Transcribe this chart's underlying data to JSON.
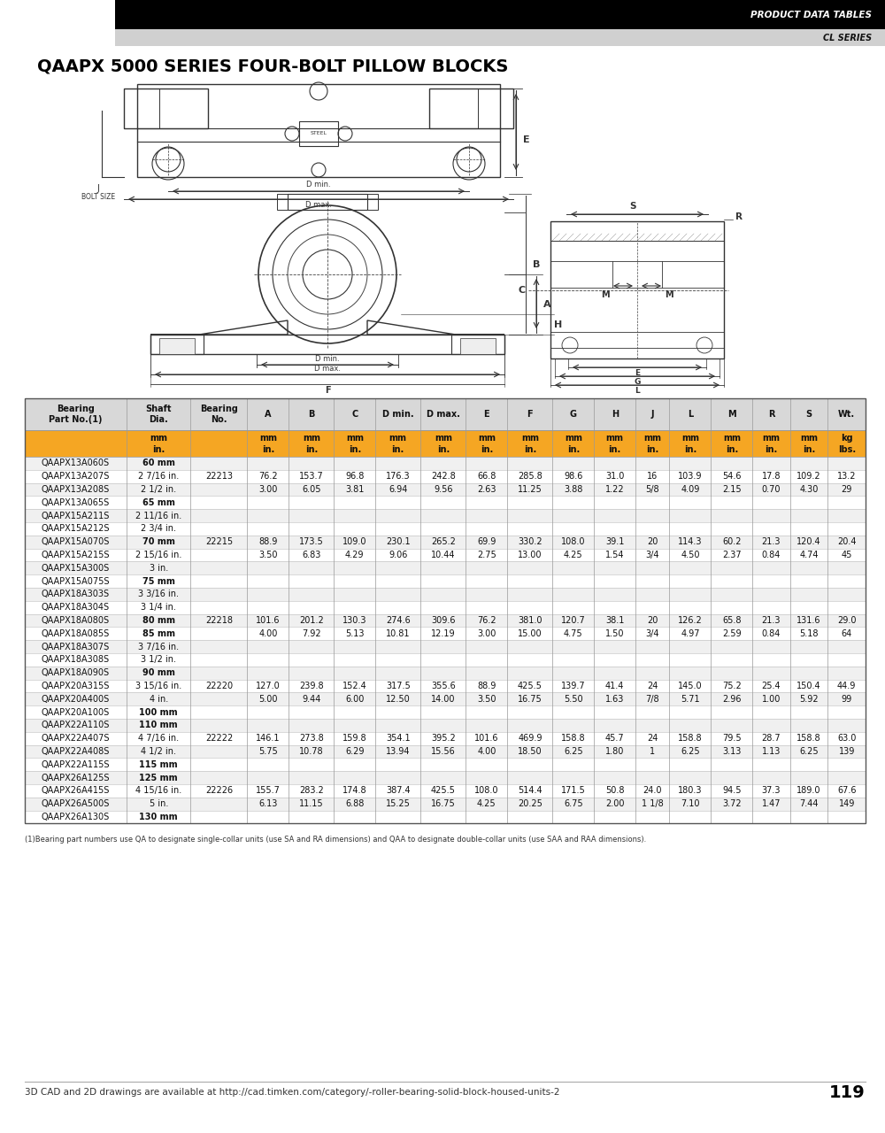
{
  "page_title": "QAAPX 5000 SERIES FOUR-BOLT PILLOW BLOCKS",
  "header_bar_text": "PRODUCT DATA TABLES",
  "subheader_text": "CL SERIES",
  "page_number": "119",
  "footer_text": "3D CAD and 2D drawings are available at http://cad.timken.com/category/-roller-bearing-solid-block-housed-units-2",
  "footnote": "(1)Bearing part numbers use QA to designate single-collar units (use SA and RA dimensions) and QAA to designate double-collar units (use SAA and RAA dimensions).",
  "col_headers": [
    "Bearing\nPart No.(1)",
    "Shaft\nDia.",
    "Bearing\nNo.",
    "A",
    "B",
    "C",
    "D min.",
    "D max.",
    "E",
    "F",
    "G",
    "H",
    "J",
    "L",
    "M",
    "R",
    "S",
    "Wt."
  ],
  "col_units_mm": [
    "",
    "mm",
    "",
    "mm",
    "mm",
    "mm",
    "mm",
    "mm",
    "mm",
    "mm",
    "mm",
    "mm",
    "mm",
    "mm",
    "mm",
    "mm",
    "mm",
    "kg"
  ],
  "col_units_in": [
    "",
    "in.",
    "",
    "in.",
    "in.",
    "in.",
    "in.",
    "in.",
    "in.",
    "in.",
    "in.",
    "in.",
    "in.",
    "in.",
    "in.",
    "in.",
    "in.",
    "lbs."
  ],
  "table_data": [
    [
      "QAAPX13A060S",
      "60 mm",
      "",
      "",
      "",
      "",
      "",
      "",
      "",
      "",
      "",
      "",
      "",
      "",
      "",
      "",
      "",
      ""
    ],
    [
      "QAAPX13A207S",
      "2 7/16 in.",
      "22213",
      "76.2",
      "153.7",
      "96.8",
      "176.3",
      "242.8",
      "66.8",
      "285.8",
      "98.6",
      "31.0",
      "16",
      "103.9",
      "54.6",
      "17.8",
      "109.2",
      "13.2"
    ],
    [
      "QAAPX13A208S",
      "2 1/2 in.",
      "",
      "3.00",
      "6.05",
      "3.81",
      "6.94",
      "9.56",
      "2.63",
      "11.25",
      "3.88",
      "1.22",
      "5/8",
      "4.09",
      "2.15",
      "0.70",
      "4.30",
      "29"
    ],
    [
      "QAAPX13A065S",
      "65 mm",
      "",
      "",
      "",
      "",
      "",
      "",
      "",
      "",
      "",
      "",
      "",
      "",
      "",
      "",
      "",
      ""
    ],
    [
      "QAAPX15A211S",
      "2 11/16 in.",
      "",
      "",
      "",
      "",
      "",
      "",
      "",
      "",
      "",
      "",
      "",
      "",
      "",
      "",
      "",
      ""
    ],
    [
      "QAAPX15A212S",
      "2 3/4 in.",
      "",
      "",
      "",
      "",
      "",
      "",
      "",
      "",
      "",
      "",
      "",
      "",
      "",
      "",
      "",
      ""
    ],
    [
      "QAAPX15A070S",
      "70 mm",
      "22215",
      "88.9",
      "173.5",
      "109.0",
      "230.1",
      "265.2",
      "69.9",
      "330.2",
      "108.0",
      "39.1",
      "20",
      "114.3",
      "60.2",
      "21.3",
      "120.4",
      "20.4"
    ],
    [
      "QAAPX15A215S",
      "2 15/16 in.",
      "",
      "3.50",
      "6.83",
      "4.29",
      "9.06",
      "10.44",
      "2.75",
      "13.00",
      "4.25",
      "1.54",
      "3/4",
      "4.50",
      "2.37",
      "0.84",
      "4.74",
      "45"
    ],
    [
      "QAAPX15A300S",
      "3 in.",
      "",
      "",
      "",
      "",
      "",
      "",
      "",
      "",
      "",
      "",
      "",
      "",
      "",
      "",
      "",
      ""
    ],
    [
      "QAAPX15A075S",
      "75 mm",
      "",
      "",
      "",
      "",
      "",
      "",
      "",
      "",
      "",
      "",
      "",
      "",
      "",
      "",
      "",
      ""
    ],
    [
      "QAAPX18A303S",
      "3 3/16 in.",
      "",
      "",
      "",
      "",
      "",
      "",
      "",
      "",
      "",
      "",
      "",
      "",
      "",
      "",
      "",
      ""
    ],
    [
      "QAAPX18A304S",
      "3 1/4 in.",
      "",
      "",
      "",
      "",
      "",
      "",
      "",
      "",
      "",
      "",
      "",
      "",
      "",
      "",
      "",
      ""
    ],
    [
      "QAAPX18A080S",
      "80 mm",
      "22218",
      "101.6",
      "201.2",
      "130.3",
      "274.6",
      "309.6",
      "76.2",
      "381.0",
      "120.7",
      "38.1",
      "20",
      "126.2",
      "65.8",
      "21.3",
      "131.6",
      "29.0"
    ],
    [
      "QAAPX18A085S",
      "85 mm",
      "",
      "4.00",
      "7.92",
      "5.13",
      "10.81",
      "12.19",
      "3.00",
      "15.00",
      "4.75",
      "1.50",
      "3/4",
      "4.97",
      "2.59",
      "0.84",
      "5.18",
      "64"
    ],
    [
      "QAAPX18A307S",
      "3 7/16 in.",
      "",
      "",
      "",
      "",
      "",
      "",
      "",
      "",
      "",
      "",
      "",
      "",
      "",
      "",
      "",
      ""
    ],
    [
      "QAAPX18A308S",
      "3 1/2 in.",
      "",
      "",
      "",
      "",
      "",
      "",
      "",
      "",
      "",
      "",
      "",
      "",
      "",
      "",
      "",
      ""
    ],
    [
      "QAAPX18A090S",
      "90 mm",
      "",
      "",
      "",
      "",
      "",
      "",
      "",
      "",
      "",
      "",
      "",
      "",
      "",
      "",
      "",
      ""
    ],
    [
      "QAAPX20A315S",
      "3 15/16 in.",
      "22220",
      "127.0",
      "239.8",
      "152.4",
      "317.5",
      "355.6",
      "88.9",
      "425.5",
      "139.7",
      "41.4",
      "24",
      "145.0",
      "75.2",
      "25.4",
      "150.4",
      "44.9"
    ],
    [
      "QAAPX20A400S",
      "4 in.",
      "",
      "5.00",
      "9.44",
      "6.00",
      "12.50",
      "14.00",
      "3.50",
      "16.75",
      "5.50",
      "1.63",
      "7/8",
      "5.71",
      "2.96",
      "1.00",
      "5.92",
      "99"
    ],
    [
      "QAAPX20A100S",
      "100 mm",
      "",
      "",
      "",
      "",
      "",
      "",
      "",
      "",
      "",
      "",
      "",
      "",
      "",
      "",
      "",
      ""
    ],
    [
      "QAAPX22A110S",
      "110 mm",
      "",
      "",
      "",
      "",
      "",
      "",
      "",
      "",
      "",
      "",
      "",
      "",
      "",
      "",
      "",
      ""
    ],
    [
      "QAAPX22A407S",
      "4 7/16 in.",
      "22222",
      "146.1",
      "273.8",
      "159.8",
      "354.1",
      "395.2",
      "101.6",
      "469.9",
      "158.8",
      "45.7",
      "24",
      "158.8",
      "79.5",
      "28.7",
      "158.8",
      "63.0"
    ],
    [
      "QAAPX22A408S",
      "4 1/2 in.",
      "",
      "5.75",
      "10.78",
      "6.29",
      "13.94",
      "15.56",
      "4.00",
      "18.50",
      "6.25",
      "1.80",
      "1",
      "6.25",
      "3.13",
      "1.13",
      "6.25",
      "139"
    ],
    [
      "QAAPX22A115S",
      "115 mm",
      "",
      "",
      "",
      "",
      "",
      "",
      "",
      "",
      "",
      "",
      "",
      "",
      "",
      "",
      "",
      ""
    ],
    [
      "QAAPX26A125S",
      "125 mm",
      "",
      "",
      "",
      "",
      "",
      "",
      "",
      "",
      "",
      "",
      "",
      "",
      "",
      "",
      "",
      ""
    ],
    [
      "QAAPX26A415S",
      "4 15/16 in.",
      "22226",
      "155.7",
      "283.2",
      "174.8",
      "387.4",
      "425.5",
      "108.0",
      "514.4",
      "171.5",
      "50.8",
      "24.0",
      "180.3",
      "94.5",
      "37.3",
      "189.0",
      "67.6"
    ],
    [
      "QAAPX26A500S",
      "5 in.",
      "",
      "6.13",
      "11.15",
      "6.88",
      "15.25",
      "16.75",
      "4.25",
      "20.25",
      "6.75",
      "2.00",
      "1 1/8",
      "7.10",
      "3.72",
      "1.47",
      "7.44",
      "149"
    ],
    [
      "QAAPX26A130S",
      "130 mm",
      "",
      "",
      "",
      "",
      "",
      "",
      "",
      "",
      "",
      "",
      "",
      "",
      "",
      "",
      "",
      ""
    ]
  ],
  "mm_size_values": [
    "60 mm",
    "65 mm",
    "70 mm",
    "75 mm",
    "80 mm",
    "85 mm",
    "90 mm",
    "100 mm",
    "110 mm",
    "115 mm",
    "125 mm",
    "130 mm"
  ],
  "orange_color": "#F5A623",
  "col_widths": [
    1.35,
    0.85,
    0.75,
    0.55,
    0.6,
    0.55,
    0.6,
    0.6,
    0.55,
    0.6,
    0.55,
    0.55,
    0.45,
    0.55,
    0.55,
    0.5,
    0.5,
    0.5
  ]
}
